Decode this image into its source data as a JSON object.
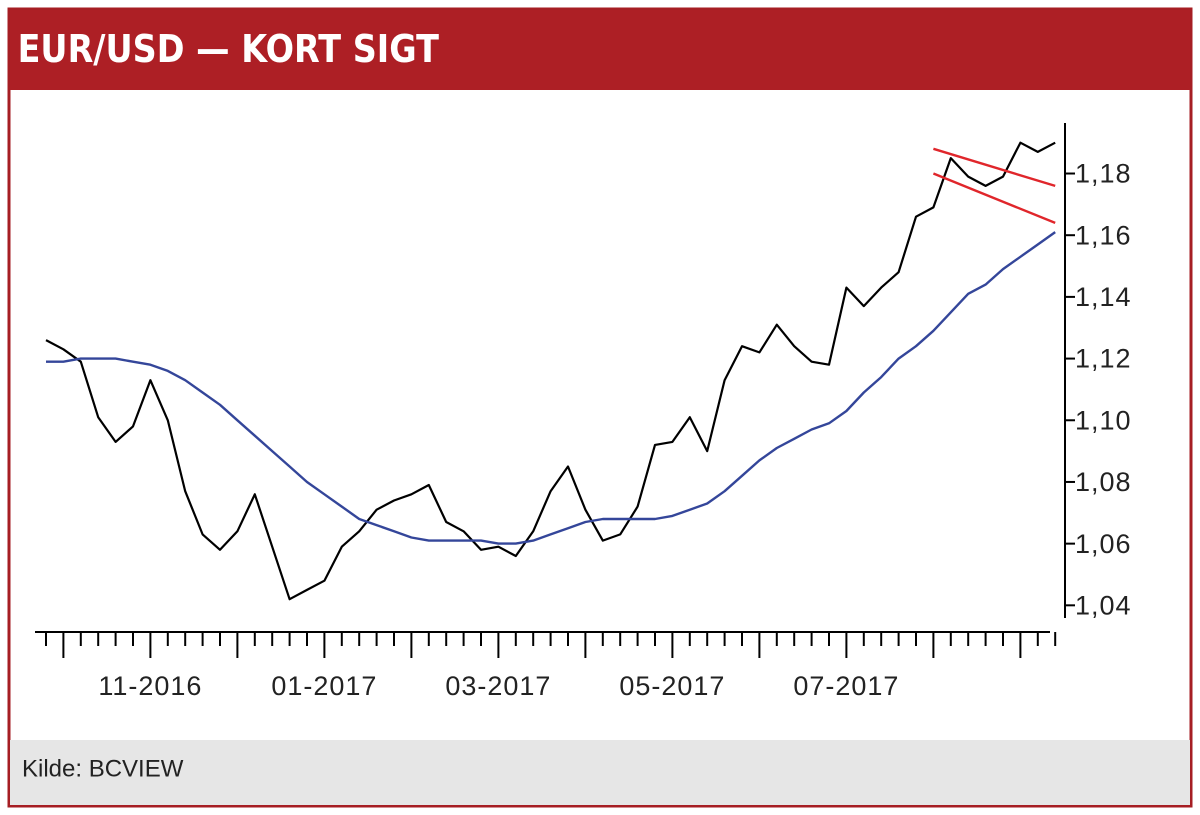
{
  "chart_data": {
    "type": "line",
    "title": "EUR/USD — KORT SIGT",
    "source": "Kilde: BCVIEW",
    "categories": [
      null,
      null,
      null,
      null,
      null,
      null,
      "11-2016",
      null,
      null,
      null,
      null,
      null,
      null,
      null,
      null,
      null,
      "01-2017",
      null,
      null,
      null,
      null,
      null,
      null,
      null,
      null,
      null,
      "03-2017",
      null,
      null,
      null,
      null,
      null,
      null,
      null,
      null,
      null,
      "05-2017",
      null,
      null,
      null,
      null,
      null,
      null,
      null,
      null,
      null,
      "07-2017",
      null,
      null,
      null,
      null,
      null,
      null,
      null,
      null,
      null,
      null,
      null,
      null
    ],
    "series": [
      {
        "color": "#000000",
        "values": [
          1.126,
          1.123,
          1.119,
          1.101,
          1.093,
          1.098,
          1.113,
          1.1,
          1.077,
          1.063,
          1.058,
          1.064,
          1.076,
          1.059,
          1.042,
          1.045,
          1.048,
          1.059,
          1.064,
          1.071,
          1.074,
          1.076,
          1.079,
          1.067,
          1.064,
          1.058,
          1.059,
          1.056,
          1.064,
          1.077,
          1.085,
          1.071,
          1.061,
          1.063,
          1.072,
          1.092,
          1.093,
          1.101,
          1.09,
          1.113,
          1.124,
          1.122,
          1.131,
          1.124,
          1.119,
          1.118,
          1.143,
          1.137,
          1.143,
          1.148,
          1.166,
          1.169,
          1.185,
          1.179,
          1.176,
          1.179,
          1.19,
          1.187,
          1.19
        ]
      },
      {
        "color": "#34469a",
        "values": [
          1.119,
          1.119,
          1.12,
          1.12,
          1.12,
          1.119,
          1.118,
          1.116,
          1.113,
          1.109,
          1.105,
          1.1,
          1.095,
          1.09,
          1.085,
          1.08,
          1.076,
          1.072,
          1.068,
          1.066,
          1.064,
          1.062,
          1.061,
          1.061,
          1.061,
          1.061,
          1.06,
          1.06,
          1.061,
          1.063,
          1.065,
          1.067,
          1.068,
          1.068,
          1.068,
          1.068,
          1.069,
          1.071,
          1.073,
          1.077,
          1.082,
          1.087,
          1.091,
          1.094,
          1.097,
          1.099,
          1.103,
          1.109,
          1.114,
          1.12,
          1.124,
          1.129,
          1.135,
          1.141,
          1.144,
          1.149,
          1.153,
          1.157,
          1.161
        ]
      },
      {
        "color": "#e0262b",
        "values": [
          null,
          null,
          null,
          null,
          null,
          null,
          null,
          null,
          null,
          null,
          null,
          null,
          null,
          null,
          null,
          null,
          null,
          null,
          null,
          null,
          null,
          null,
          null,
          null,
          null,
          null,
          null,
          null,
          null,
          null,
          null,
          null,
          null,
          null,
          null,
          null,
          null,
          null,
          null,
          null,
          null,
          null,
          null,
          null,
          null,
          null,
          null,
          null,
          null,
          null,
          null,
          1.188,
          null,
          null,
          null,
          null,
          null,
          null,
          1.176
        ]
      },
      {
        "color": "#e0262b",
        "values": [
          null,
          null,
          null,
          null,
          null,
          null,
          null,
          null,
          null,
          null,
          null,
          null,
          null,
          null,
          null,
          null,
          null,
          null,
          null,
          null,
          null,
          null,
          null,
          null,
          null,
          null,
          null,
          null,
          null,
          null,
          null,
          null,
          null,
          null,
          null,
          null,
          null,
          null,
          null,
          null,
          null,
          null,
          null,
          null,
          null,
          null,
          null,
          null,
          null,
          null,
          null,
          1.18,
          null,
          null,
          null,
          null,
          null,
          null,
          1.164
        ]
      }
    ],
    "ylim": [
      1.032,
      1.198
    ],
    "yticks": [
      {
        "value": 1.04,
        "label": "1,04"
      },
      {
        "value": 1.06,
        "label": "1,06"
      },
      {
        "value": 1.08,
        "label": "1,08"
      },
      {
        "value": 1.1,
        "label": "1,10"
      },
      {
        "value": 1.12,
        "label": "1,12"
      },
      {
        "value": 1.14,
        "label": "1,14"
      },
      {
        "value": 1.16,
        "label": "1,16"
      },
      {
        "value": 1.18,
        "label": "1,18"
      }
    ]
  }
}
